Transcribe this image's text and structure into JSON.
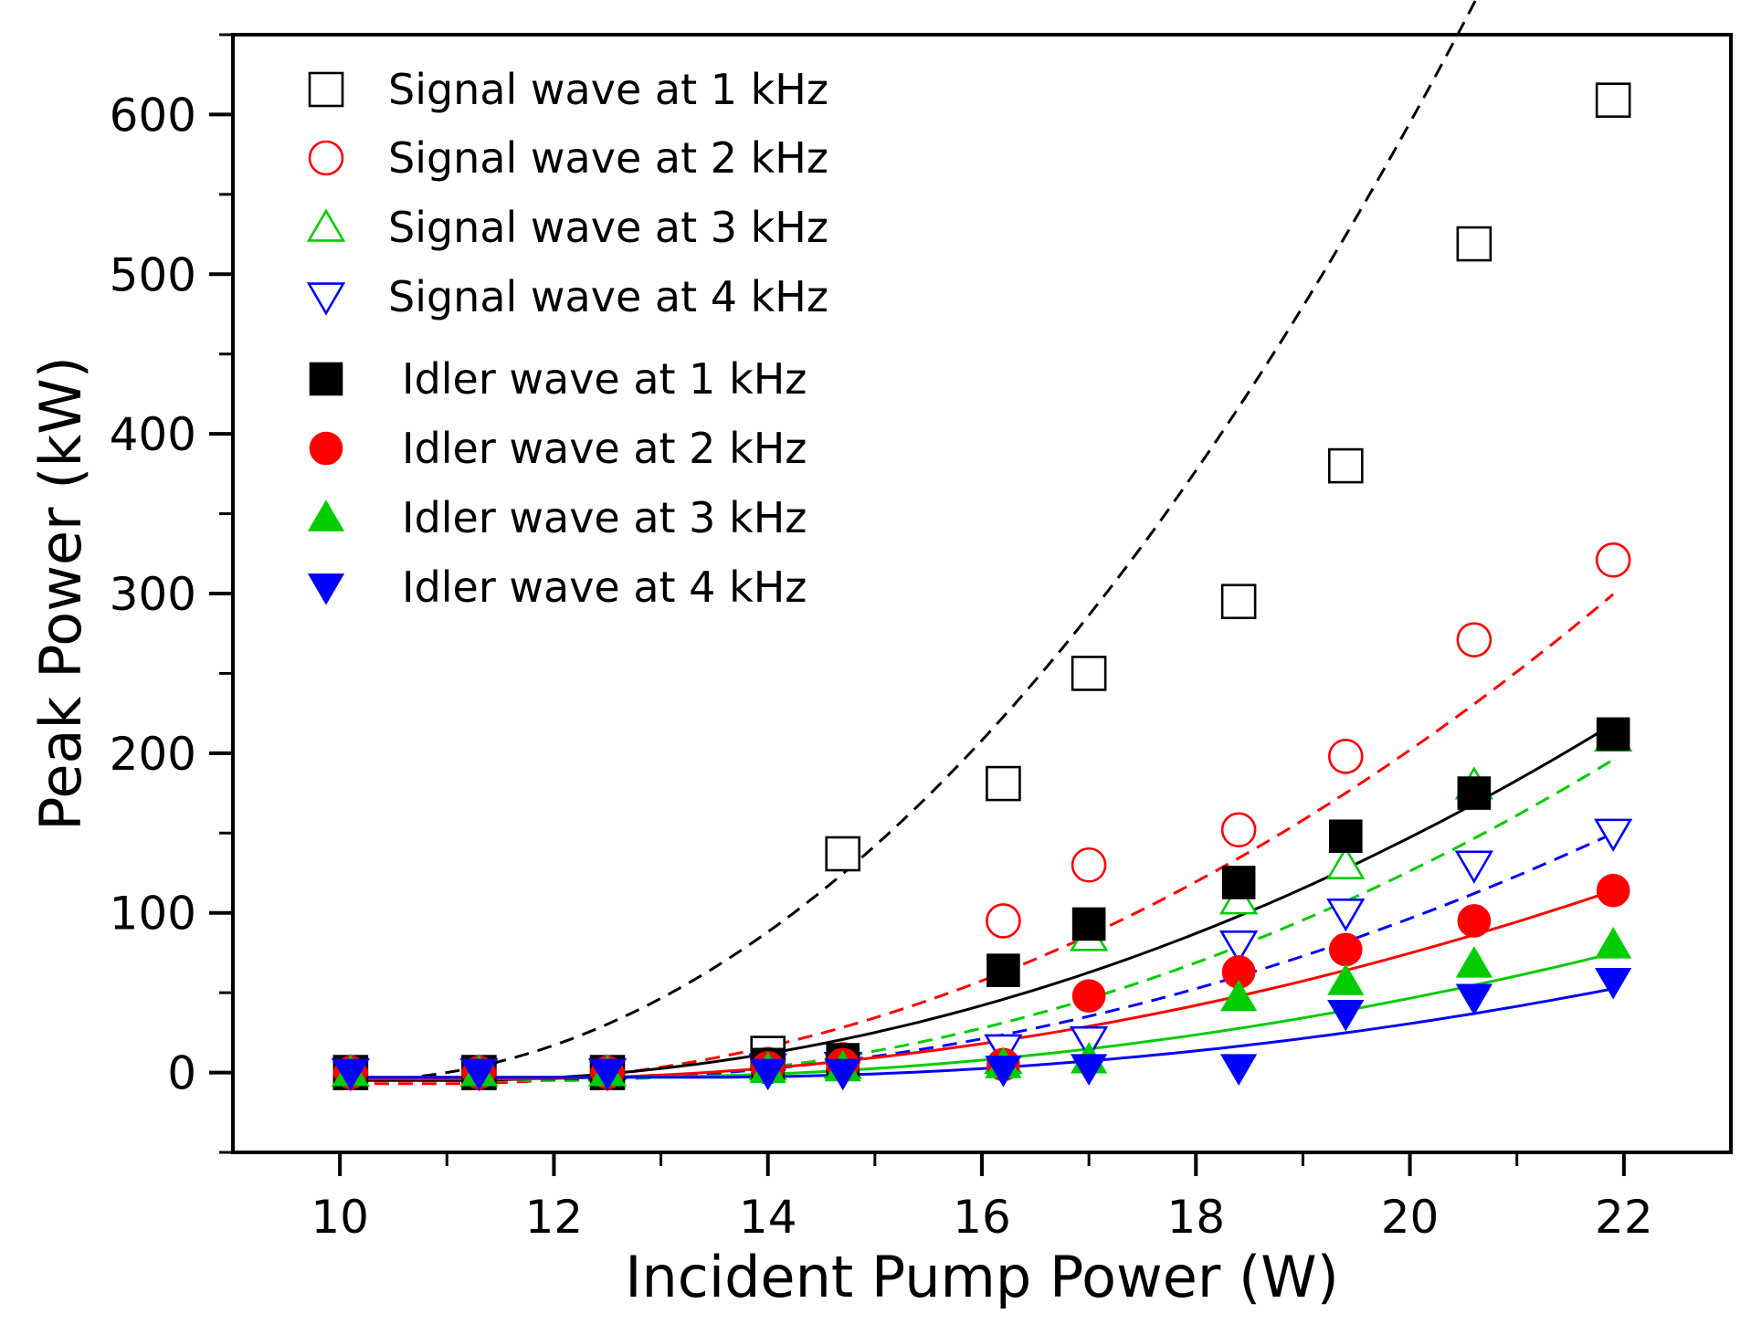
{
  "chart_data": {
    "type": "scatter",
    "xlabel": "Incident Pump Power (W)",
    "ylabel": "Peak Power (kW)",
    "xlim": [
      9,
      23
    ],
    "ylim": [
      -50,
      650
    ],
    "x_ticks": [
      "10",
      "12",
      "14",
      "16",
      "18",
      "20",
      "22"
    ],
    "y_ticks": [
      "0",
      "100",
      "200",
      "300",
      "400",
      "500",
      "600"
    ],
    "legend_position": "top-left",
    "x": [
      10.1,
      11.3,
      12.5,
      14.0,
      14.7,
      16.2,
      17.0,
      18.4,
      19.4,
      20.6,
      21.9
    ],
    "series": [
      {
        "name": "Signal wave at 1 kHz",
        "color": "#000000",
        "marker": "square",
        "filled": false,
        "fit": "dashed",
        "values": [
          0,
          0,
          0,
          12,
          137,
          181,
          250,
          295,
          380,
          519,
          609
        ]
      },
      {
        "name": "Signal wave at 2 kHz",
        "color": "#ff0000",
        "marker": "circle",
        "filled": false,
        "fit": "dashed",
        "values": [
          0,
          0,
          0,
          5,
          8,
          95,
          130,
          152,
          198,
          271,
          321
        ]
      },
      {
        "name": "Signal wave at 3 kHz",
        "color": "#00cc00",
        "marker": "triangle-up",
        "filled": false,
        "fit": "dashed",
        "values": [
          0,
          0,
          0,
          4,
          5,
          8,
          85,
          108,
          130,
          180,
          210
        ]
      },
      {
        "name": "Signal wave at 4 kHz",
        "color": "#0000ff",
        "marker": "triangle-down",
        "filled": false,
        "fit": "dashed",
        "values": [
          0,
          0,
          0,
          3,
          4,
          15,
          20,
          80,
          100,
          130,
          150
        ]
      },
      {
        "name": "Idler wave at 1 kHz",
        "color": "#000000",
        "marker": "square",
        "filled": true,
        "fit": "solid",
        "values": [
          0,
          0,
          0,
          5,
          8,
          64,
          93,
          119,
          148,
          175,
          212
        ]
      },
      {
        "name": "Idler wave at 2 kHz",
        "color": "#ff0000",
        "marker": "circle",
        "filled": true,
        "fit": "solid",
        "values": [
          0,
          0,
          0,
          3,
          5,
          5,
          48,
          63,
          77,
          95,
          114
        ]
      },
      {
        "name": "Idler wave at 3 kHz",
        "color": "#00cc00",
        "marker": "triangle-up",
        "filled": true,
        "fit": "solid",
        "values": [
          0,
          0,
          0,
          2,
          3,
          5,
          8,
          47,
          57,
          68,
          80
        ]
      },
      {
        "name": "Idler wave at 4 kHz",
        "color": "#0000ff",
        "marker": "triangle-down",
        "filled": true,
        "fit": "solid",
        "values": [
          0,
          0,
          0,
          0,
          0,
          2,
          3,
          3,
          37,
          47,
          57
        ]
      }
    ],
    "fit_curves": {
      "x_start": 10.1,
      "x_end": 21.9,
      "coefficients": [
        {
          "series": "Signal wave at 1 kHz",
          "c": 6.12,
          "x0": 10.1,
          "y0": -5
        },
        {
          "series": "Signal wave at 2 kHz",
          "c": 2.58,
          "x0": 11.0,
          "y0": -7
        },
        {
          "series": "Signal wave at 3 kHz",
          "c": 2.05,
          "x0": 12.0,
          "y0": -5
        },
        {
          "series": "Signal wave at 4 kHz",
          "c": 1.57,
          "x0": 12.0,
          "y0": -4
        },
        {
          "series": "Idler wave at 1 kHz",
          "c": 1.88,
          "x0": 11.0,
          "y0": -5
        },
        {
          "series": "Idler wave at 2 kHz",
          "c": 1.09,
          "x0": 11.5,
          "y0": -4
        },
        {
          "series": "Idler wave at 3 kHz",
          "c": 0.88,
          "x0": 12.5,
          "y0": -3
        },
        {
          "series": "Idler wave at 4 kHz",
          "c": 0.75,
          "x0": 13.3,
          "y0": -3
        }
      ]
    }
  }
}
